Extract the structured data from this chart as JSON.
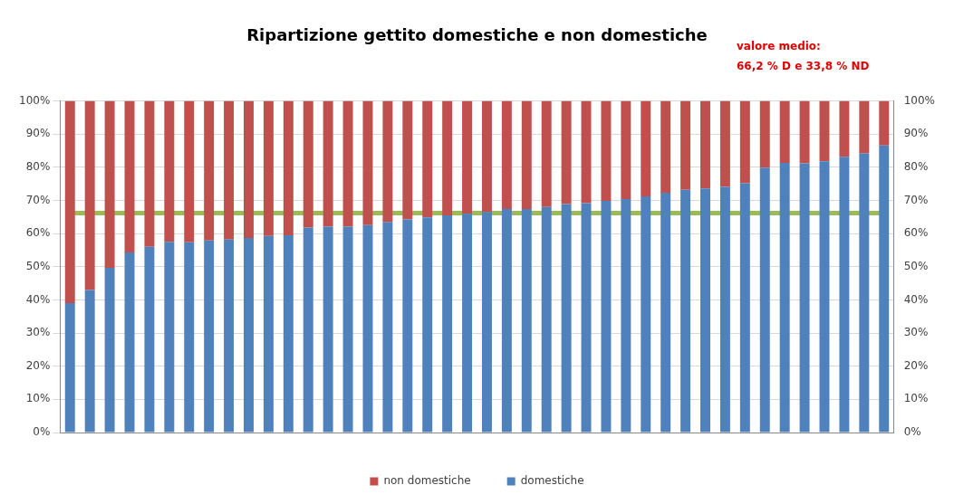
{
  "chart_data": {
    "type": "bar",
    "title": "Ripartizione gettito domestiche e non domestiche",
    "stacked": true,
    "categories": [
      null,
      null,
      null,
      null,
      null,
      null,
      null,
      null,
      null,
      null,
      null,
      null,
      null,
      null,
      null,
      null,
      null,
      null,
      null,
      null,
      null,
      null,
      null,
      null,
      null,
      null,
      null,
      null,
      null,
      null,
      null,
      null,
      null,
      null,
      null,
      null,
      null,
      null,
      null,
      null,
      null,
      null
    ],
    "series": [
      {
        "name": "domestiche",
        "color": "#4f81bd",
        "values": [
          39.0,
          43.0,
          49.7,
          54.3,
          56.0,
          57.5,
          57.4,
          57.9,
          58.2,
          58.7,
          59.3,
          59.5,
          61.8,
          62.1,
          62.1,
          62.6,
          63.5,
          64.3,
          64.9,
          65.5,
          66.0,
          66.5,
          67.4,
          67.4,
          68.0,
          68.9,
          69.2,
          69.9,
          70.4,
          71.2,
          72.3,
          73.2,
          73.6,
          74.1,
          75.2,
          79.9,
          81.3,
          81.2,
          81.8,
          83.2,
          84.2,
          86.6
        ]
      },
      {
        "name": "non domestiche",
        "color": "#c0504d",
        "values": [
          61.0,
          57.0,
          50.3,
          45.7,
          44.0,
          42.5,
          42.6,
          42.1,
          41.8,
          41.3,
          40.7,
          40.5,
          38.2,
          37.9,
          37.9,
          37.4,
          36.5,
          35.7,
          35.1,
          34.5,
          34.0,
          33.5,
          32.6,
          32.6,
          32.0,
          31.1,
          30.8,
          30.1,
          29.6,
          28.8,
          27.7,
          26.8,
          26.4,
          25.9,
          24.8,
          20.1,
          18.7,
          18.8,
          18.2,
          16.8,
          15.8,
          13.4
        ]
      }
    ],
    "ylim": [
      0,
      100
    ],
    "yticks": [
      {
        "value": 0,
        "label": "0%"
      },
      {
        "value": 10,
        "label": "10%"
      },
      {
        "value": 20,
        "label": "20%"
      },
      {
        "value": 30,
        "label": "30%"
      },
      {
        "value": 40,
        "label": "40%"
      },
      {
        "value": 50,
        "label": "50%"
      },
      {
        "value": 60,
        "label": "60%"
      },
      {
        "value": 70,
        "label": "70%"
      },
      {
        "value": 80,
        "label": "80%"
      },
      {
        "value": 90,
        "label": "90%"
      },
      {
        "value": 100,
        "label": "100%"
      }
    ],
    "y2lim": [
      0,
      100
    ],
    "y2ticks": [
      {
        "value": 0,
        "label": "0%"
      },
      {
        "value": 10,
        "label": "10%"
      },
      {
        "value": 20,
        "label": "20%"
      },
      {
        "value": 30,
        "label": "30%"
      },
      {
        "value": 40,
        "label": "40%"
      },
      {
        "value": 50,
        "label": "50%"
      },
      {
        "value": 60,
        "label": "60%"
      },
      {
        "value": 70,
        "label": "70%"
      },
      {
        "value": 80,
        "label": "80%"
      },
      {
        "value": 90,
        "label": "90%"
      },
      {
        "value": 100,
        "label": "100%"
      }
    ],
    "ref_lines": [
      {
        "axis": "y",
        "value": 66.2,
        "color": "#9bbb59"
      }
    ],
    "annotations": [
      "valore medio:",
      "66,2 % D e 33,8 % ND"
    ],
    "grid": "y",
    "legend": "bottom"
  }
}
